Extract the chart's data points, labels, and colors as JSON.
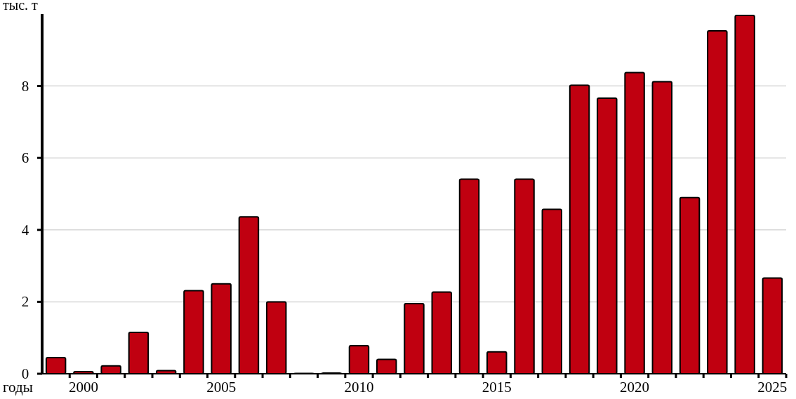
{
  "chart_data": {
    "type": "bar",
    "ylabel": "тыс. т",
    "xlabel": "годы",
    "categories": [
      null,
      "2000",
      null,
      null,
      null,
      null,
      "2005",
      null,
      null,
      null,
      null,
      "2010",
      null,
      null,
      null,
      null,
      "2015",
      null,
      null,
      null,
      null,
      "2020",
      null,
      null,
      null,
      null,
      "2025"
    ],
    "values": [
      0.45,
      0.06,
      0.22,
      1.15,
      0.09,
      2.31,
      2.5,
      4.36,
      2.0,
      0.01,
      0.02,
      0.78,
      0.4,
      1.95,
      2.27,
      5.41,
      0.61,
      5.41,
      4.57,
      8.02,
      7.66,
      8.37,
      8.12,
      4.9,
      9.53,
      9.96,
      2.66
    ],
    "color": "#c00010",
    "ylim": [
      0,
      10
    ],
    "yticks": [
      0,
      2,
      4,
      6,
      8
    ],
    "grid": "y"
  }
}
